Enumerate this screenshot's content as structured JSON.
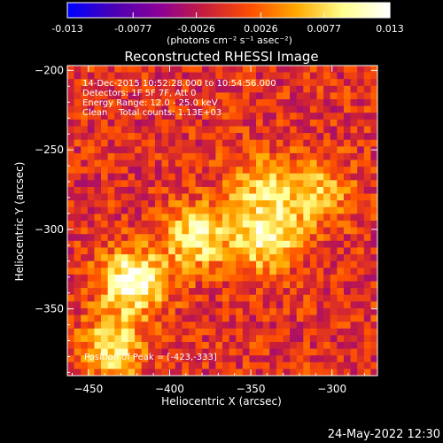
{
  "chart_data": {
    "type": "heatmap",
    "title": "Reconstructed RHESSI Image",
    "xlabel": "Heliocentric X (arcsec)",
    "ylabel": "Heliocentric Y (arcsec)",
    "xlim": [
      -463,
      -272
    ],
    "ylim": [
      -392,
      -197
    ],
    "x_ticks": [
      -450,
      -400,
      -350,
      -300
    ],
    "y_ticks": [
      -200,
      -250,
      -300,
      -350
    ],
    "colorbar": {
      "ticks": [
        "-0.013",
        "-0.0077",
        "-0.0026",
        "0.0026",
        "0.0077",
        "0.013"
      ],
      "unit_label": "(photons cm⁻² s⁻¹ asec⁻²)",
      "range": [
        -0.013,
        0.013
      ]
    },
    "annotations": [
      "14-Dec-2015 10:52:28.000 to 10:54:56.000",
      "Detectors: 1F 5F 7F, Att 0",
      "Energy Range: 12.0 - 25.0 keV",
      "Clean    Total counts: 1.13E+03"
    ],
    "peak_label": "Position of Peak = [-423,-333]",
    "sources": [
      {
        "x": -423,
        "y": -333,
        "amp": 0.013
      },
      {
        "x": -340,
        "y": -305,
        "amp": 0.011
      },
      {
        "x": -383,
        "y": -305,
        "amp": 0.01
      },
      {
        "x": -310,
        "y": -278,
        "amp": 0.008
      },
      {
        "x": -345,
        "y": -272,
        "amp": 0.007
      },
      {
        "x": -435,
        "y": -375,
        "amp": 0.009
      }
    ]
  },
  "footer": {
    "timestamp": "24-May-2022 12:30"
  },
  "colors": {
    "background": "#000000",
    "colormap": [
      "#0000ff",
      "#4b00b4",
      "#8c0096",
      "#c81e3c",
      "#ff5000",
      "#ffaa00",
      "#ffff8c",
      "#ffffff"
    ]
  }
}
